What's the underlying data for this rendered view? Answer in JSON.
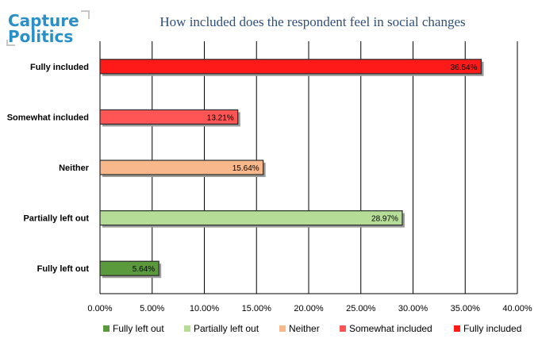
{
  "logo": {
    "line1": "Capture",
    "line2": "Politics",
    "color": "#2a8fc7"
  },
  "chart_data": {
    "type": "bar",
    "orientation": "horizontal",
    "title": "How included does the respondent feel in social changes",
    "categories": [
      "Fully included",
      "Somewhat included",
      "Neither",
      "Partially left out",
      "Fully left out"
    ],
    "values": [
      36.54,
      13.21,
      15.64,
      28.97,
      5.64
    ],
    "data_labels": [
      "36.54%",
      "13.21%",
      "15.64%",
      "28.97%",
      "5.64%"
    ],
    "colors": [
      "#ff1a1a",
      "#ff5555",
      "#f8b88b",
      "#b5dd98",
      "#5b9a3c"
    ],
    "xlim": [
      0,
      40
    ],
    "x_ticks": [
      "0.00%",
      "5.00%",
      "10.00%",
      "15.00%",
      "20.00%",
      "25.00%",
      "30.00%",
      "35.00%",
      "40.00%"
    ],
    "grid": true,
    "legend_position": "bottom",
    "legend": [
      {
        "label": "Fully left out",
        "color": "#5b9a3c"
      },
      {
        "label": "Partially left out",
        "color": "#b5dd98"
      },
      {
        "label": "Neither",
        "color": "#f8b88b"
      },
      {
        "label": "Somewhat included",
        "color": "#ff5555"
      },
      {
        "label": "Fully included",
        "color": "#ff1a1a"
      }
    ]
  }
}
